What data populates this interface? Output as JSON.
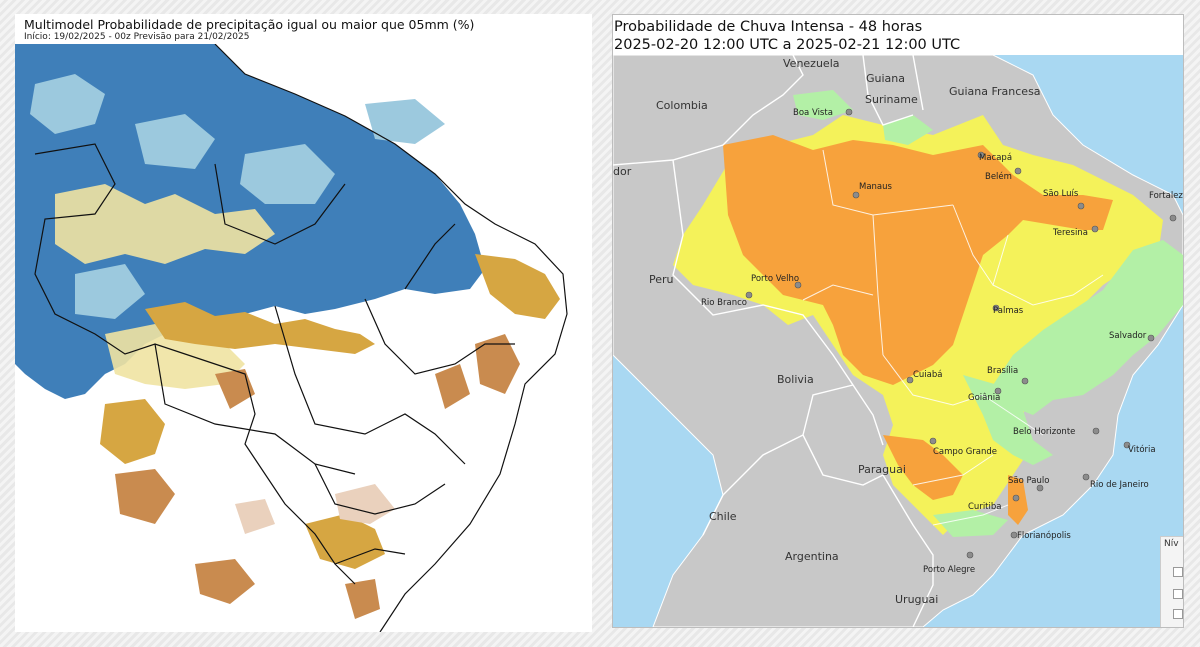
{
  "left_panel": {
    "title": "Multimodel Probabilidade de precipitação igual ou maior que 05mm (%)",
    "subtitle": "Início: 19/02/2025 - 00z  Previsão para 21/02/2025",
    "colors": {
      "ocean": "#ffffff",
      "dark_blue": "#3f7fb9",
      "light_blue": "#9cc9de",
      "pale_yellow": "#efe3a2",
      "gold": "#d6a642",
      "brown": "#c98b4f",
      "tan": "#ead1bd"
    }
  },
  "right_panel": {
    "title_line1": "Probabilidade de Chuva Intensa - 48 horas",
    "title_line2": "2025-02-20 12:00 UTC a 2025-02-21 12:00 UTC",
    "legend_title": "Nív",
    "colors": {
      "ocean": "#a9d8f2",
      "land": "#c8c8c8",
      "orange": "#f7a23c",
      "yellow": "#f4f25a",
      "green": "#b3f0a6"
    },
    "countries": [
      "Venezuela",
      "Guiana",
      "Suriname",
      "Guiana Francesa",
      "Colombia",
      "Peru",
      "Bolivia",
      "Paraguai",
      "Chile",
      "Argentina",
      "Uruguai"
    ],
    "partial_labels": [
      "dor"
    ],
    "cities": [
      "Boa Vista",
      "Macapá",
      "Manaus",
      "Belém",
      "São Luís",
      "Fortaleza",
      "Teresina",
      "Porto Velho",
      "Rio Branco",
      "Palmas",
      "Salvador",
      "Cuiabá",
      "Brasília",
      "Goiânia",
      "Belo Horizonte",
      "Vitória",
      "Campo Grande",
      "São Paulo",
      "Rio de Janeiro",
      "Curitiba",
      "Florianópolis",
      "Porto Alegre"
    ]
  }
}
